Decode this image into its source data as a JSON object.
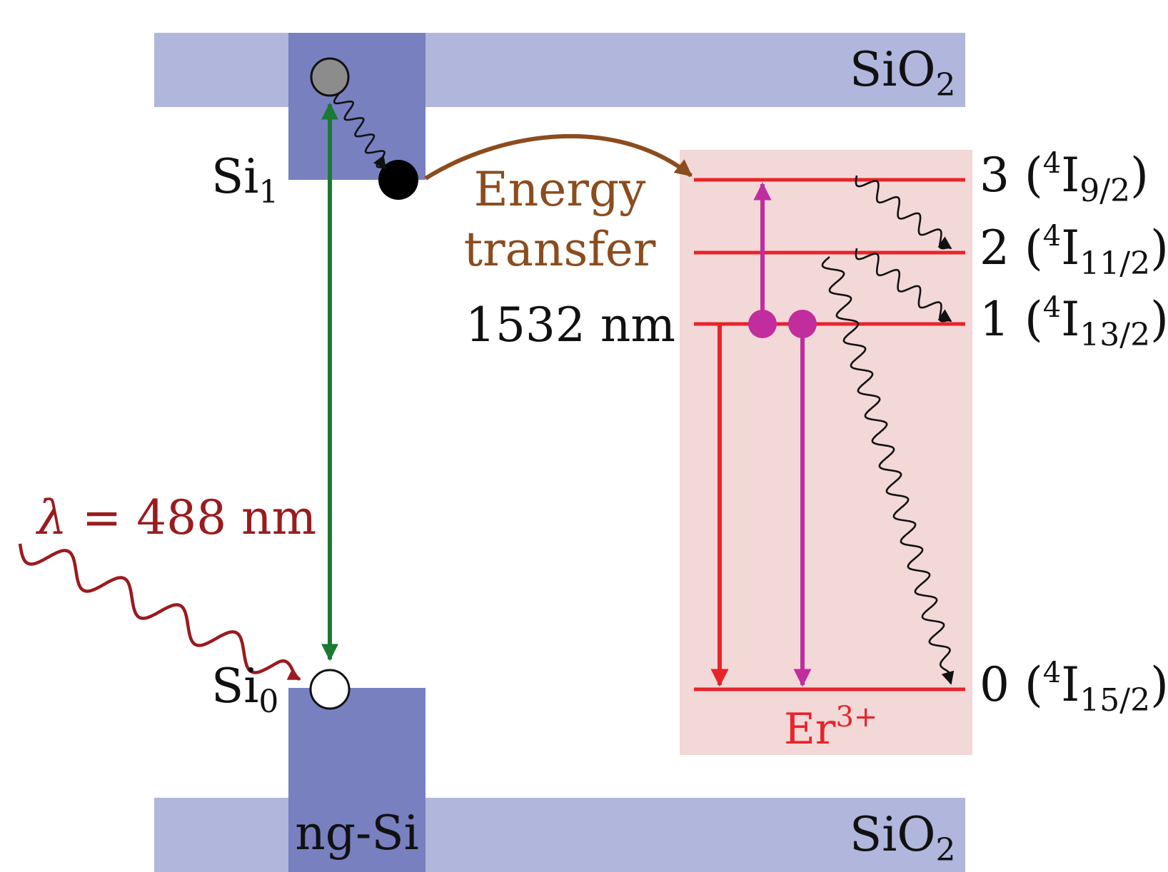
{
  "labels": {
    "sio2_top": "SiO",
    "sio2_top_sub": "2",
    "sio2_bottom": "SiO",
    "sio2_bottom_sub": "2",
    "si1": "Si",
    "si1_sub": "1",
    "si0": "Si",
    "si0_sub": "0",
    "ngsi": "ng-Si",
    "energy_transfer_line1": "Energy",
    "energy_transfer_line2": "transfer",
    "wavelength_emission": "1532 nm",
    "excitation_symbol": "λ",
    "excitation_rest": " = 488 nm",
    "ion_base": "Er",
    "ion_charge": "3+"
  },
  "levels": [
    {
      "index": "3",
      "open": " (",
      "sup": "4",
      "term": "I",
      "sub": "9/2",
      "close": ")"
    },
    {
      "index": "2",
      "open": " (",
      "sup": "4",
      "term": "I",
      "sub": "11/2",
      "close": ")"
    },
    {
      "index": "1",
      "open": " (",
      "sup": "4",
      "term": "I",
      "sub": "13/2",
      "close": ")"
    },
    {
      "index": "0",
      "open": " (",
      "sup": "4",
      "term": "I",
      "sub": "15/2",
      "close": ")"
    }
  ],
  "colors": {
    "sio2_band": "#b0b6dc",
    "ng_si_band": "#7880c0",
    "er_box": "#f3d8d8",
    "er_level": "#e8232a",
    "magenta": "#c22d9e",
    "green": "#1a7a34",
    "brown": "#8b4c1e",
    "excitation": "#9a1b1e",
    "electron_gray": "#8c8c8c",
    "electron_black": "#000000",
    "hole_white": "#ffffff"
  }
}
